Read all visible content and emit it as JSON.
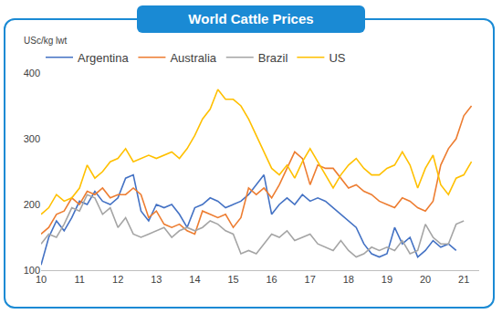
{
  "chart_data": {
    "type": "line",
    "title": "World Cattle Prices",
    "ylabel": "USc/kg lwt",
    "x": [
      10.0,
      10.2,
      10.4,
      10.6,
      10.8,
      11.0,
      11.2,
      11.4,
      11.6,
      11.8,
      12.0,
      12.2,
      12.4,
      12.6,
      12.8,
      13.0,
      13.2,
      13.4,
      13.6,
      13.8,
      14.0,
      14.2,
      14.4,
      14.6,
      14.8,
      15.0,
      15.2,
      15.4,
      15.6,
      15.8,
      16.0,
      16.2,
      16.4,
      16.6,
      16.8,
      17.0,
      17.2,
      17.4,
      17.6,
      17.8,
      18.0,
      18.2,
      18.4,
      18.6,
      18.8,
      19.0,
      19.2,
      19.4,
      19.6,
      19.8,
      20.0,
      20.2,
      20.4,
      20.6,
      20.8,
      21.0,
      21.2
    ],
    "series": [
      {
        "name": "Argentina",
        "color": "#4472c4",
        "values": [
          108,
          150,
          175,
          160,
          180,
          205,
          200,
          220,
          205,
          200,
          210,
          240,
          245,
          190,
          175,
          200,
          195,
          200,
          185,
          165,
          195,
          200,
          210,
          205,
          195,
          200,
          205,
          215,
          230,
          245,
          185,
          200,
          210,
          200,
          215,
          205,
          210,
          205,
          195,
          185,
          175,
          165,
          140,
          125,
          120,
          125,
          165,
          140,
          150,
          120,
          130,
          145,
          135,
          140,
          130,
          null,
          null
        ]
      },
      {
        "name": "Australia",
        "color": "#ed7d31",
        "values": [
          155,
          165,
          185,
          190,
          210,
          200,
          220,
          215,
          225,
          210,
          215,
          215,
          225,
          215,
          180,
          190,
          170,
          165,
          170,
          160,
          155,
          190,
          185,
          180,
          185,
          165,
          180,
          225,
          215,
          225,
          210,
          230,
          255,
          280,
          270,
          230,
          260,
          255,
          255,
          240,
          225,
          230,
          220,
          215,
          205,
          200,
          195,
          210,
          205,
          195,
          190,
          205,
          260,
          285,
          300,
          335,
          350
        ]
      },
      {
        "name": "Brazil",
        "color": "#a5a5a5",
        "values": [
          140,
          155,
          150,
          170,
          195,
          190,
          215,
          210,
          185,
          195,
          165,
          180,
          155,
          150,
          155,
          160,
          165,
          150,
          160,
          165,
          160,
          165,
          175,
          170,
          160,
          155,
          125,
          130,
          125,
          140,
          155,
          150,
          160,
          145,
          150,
          155,
          140,
          135,
          130,
          145,
          130,
          120,
          125,
          135,
          130,
          135,
          130,
          145,
          125,
          130,
          170,
          150,
          140,
          140,
          170,
          175,
          null
        ]
      },
      {
        "name": "US",
        "color": "#ffc000",
        "values": [
          185,
          195,
          215,
          205,
          210,
          225,
          260,
          240,
          250,
          265,
          270,
          285,
          265,
          270,
          275,
          270,
          275,
          280,
          270,
          285,
          305,
          330,
          345,
          375,
          360,
          360,
          350,
          330,
          305,
          280,
          255,
          245,
          260,
          240,
          265,
          285,
          265,
          245,
          225,
          245,
          260,
          270,
          255,
          245,
          245,
          255,
          260,
          280,
          260,
          225,
          255,
          275,
          230,
          215,
          240,
          245,
          265
        ]
      }
    ],
    "xlim": [
      10,
      21.4
    ],
    "xticks": [
      10,
      11,
      12,
      13,
      14,
      15,
      16,
      17,
      18,
      19,
      20,
      21
    ],
    "ylim": [
      100,
      400
    ],
    "yticks": [
      100,
      200,
      300,
      400
    ],
    "grid": false,
    "legend": "top-left"
  }
}
